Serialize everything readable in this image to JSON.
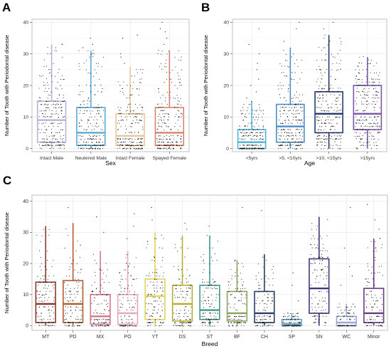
{
  "panels": {
    "a": {
      "letter": "A"
    },
    "b": {
      "letter": "B"
    },
    "c": {
      "letter": "C"
    }
  },
  "chart_data": [
    {
      "id": "A",
      "type": "box",
      "xlabel": "Sex",
      "ylabel": "Number of Tooth with Periodontal disease",
      "ylim": [
        -1,
        41
      ],
      "yticks": [
        0,
        10,
        20,
        30,
        40
      ],
      "grid": true,
      "categories": [
        "Intact Male",
        "Neutered Male",
        "Intact Female",
        "Spayed Female"
      ],
      "colors": [
        "#b9b3dc",
        "#5aa9d6",
        "#e8c79a",
        "#d9836b"
      ],
      "boxes": [
        {
          "min": 0,
          "q1": 2,
          "median": 9,
          "q3": 15,
          "max": 33
        },
        {
          "min": 0,
          "q1": 1,
          "median": 5,
          "q3": 13,
          "max": 31
        },
        {
          "min": 0,
          "q1": 1,
          "median": 4,
          "q3": 11,
          "max": 26
        },
        {
          "min": 0,
          "q1": 1,
          "median": 5,
          "q3": 13,
          "max": 31
        }
      ],
      "outliers": [
        [],
        [
          32,
          33,
          35
        ],
        [
          27,
          29,
          30,
          35,
          36
        ],
        [
          33,
          35,
          37,
          38,
          40
        ]
      ]
    },
    {
      "id": "B",
      "type": "box",
      "xlabel": "Age",
      "ylabel": "Number of Tooth with Periodontal disease",
      "ylim": [
        -1,
        41
      ],
      "yticks": [
        0,
        10,
        20,
        30,
        40
      ],
      "grid": true,
      "categories": [
        "<5yrs",
        ">5, <10yrs",
        ">10, <15yrs",
        ">15yrs"
      ],
      "colors": [
        "#4bb6d8",
        "#4a8fc8",
        "#273a6e",
        "#7a57a8"
      ],
      "boxes": [
        {
          "min": 0,
          "q1": 0,
          "median": 2,
          "q3": 6,
          "max": 15
        },
        {
          "min": 0,
          "q1": 2,
          "median": 7,
          "q3": 14,
          "max": 32
        },
        {
          "min": 0,
          "q1": 5,
          "median": 11,
          "q3": 18,
          "max": 36
        },
        {
          "min": 0,
          "q1": 6,
          "median": 11,
          "q3": 20,
          "max": 29
        }
      ],
      "outliers": [
        [
          16,
          18,
          20,
          22,
          25,
          27,
          30,
          33,
          38
        ],
        [
          34,
          38,
          40
        ],
        [
          38,
          40
        ],
        []
      ]
    },
    {
      "id": "C",
      "type": "box",
      "xlabel": "Breed",
      "ylabel": "Number of Tooth with Periodontal disease",
      "ylim": [
        -1.5,
        42
      ],
      "yticks": [
        0,
        10,
        20,
        30,
        40
      ],
      "grid": true,
      "categories": [
        "MT",
        "PD",
        "MX",
        "PO",
        "YT",
        "DS",
        "ST",
        "BF",
        "CH",
        "SP",
        "SN",
        "WC",
        "Minor"
      ],
      "colors": [
        "#8b3a2c",
        "#b25d2e",
        "#d2788a",
        "#e8a8b8",
        "#e2d35a",
        "#b6b030",
        "#3d9a8c",
        "#86a657",
        "#2c3e62",
        "#6aa3cf",
        "#3d3a7a",
        "#98a8d4",
        "#6a3d82"
      ],
      "boxes": [
        {
          "min": 0,
          "q1": 1,
          "median": 7,
          "q3": 14,
          "max": 32
        },
        {
          "min": 0,
          "q1": 1,
          "median": 7,
          "q3": 14.5,
          "max": 33
        },
        {
          "min": 0,
          "q1": 0.5,
          "median": 3,
          "q3": 10,
          "max": 24
        },
        {
          "min": 0,
          "q1": 0.5,
          "median": 4,
          "q3": 10,
          "max": 24
        },
        {
          "min": 0,
          "q1": 2,
          "median": 9.5,
          "q3": 15,
          "max": 30
        },
        {
          "min": 0,
          "q1": 1.5,
          "median": 7,
          "q3": 13,
          "max": 29
        },
        {
          "min": 0,
          "q1": 2,
          "median": 5,
          "q3": 13,
          "max": 29
        },
        {
          "min": 0,
          "q1": 1.5,
          "median": 4,
          "q3": 11,
          "max": 21
        },
        {
          "min": 0,
          "q1": 1,
          "median": 4,
          "q3": 11,
          "max": 23
        },
        {
          "min": 0,
          "q1": 0,
          "median": 0.5,
          "q3": 2,
          "max": 4
        },
        {
          "min": 0,
          "q1": 4,
          "median": 12,
          "q3": 21.5,
          "max": 35
        },
        {
          "min": 0,
          "q1": 0,
          "median": 1,
          "q3": 3,
          "max": 7
        },
        {
          "min": 0,
          "q1": 1,
          "median": 4,
          "q3": 12,
          "max": 28
        }
      ],
      "outliers": [
        [],
        [
          38
        ],
        [
          30,
          35
        ],
        [
          28,
          32,
          36
        ],
        [
          34,
          38
        ],
        [
          31,
          33
        ],
        [
          32
        ],
        [
          38
        ],
        [
          37
        ],
        [
          8,
          13,
          17
        ],
        [],
        [
          13,
          16,
          19,
          25,
          38
        ],
        [
          31,
          34,
          39
        ]
      ]
    }
  ]
}
